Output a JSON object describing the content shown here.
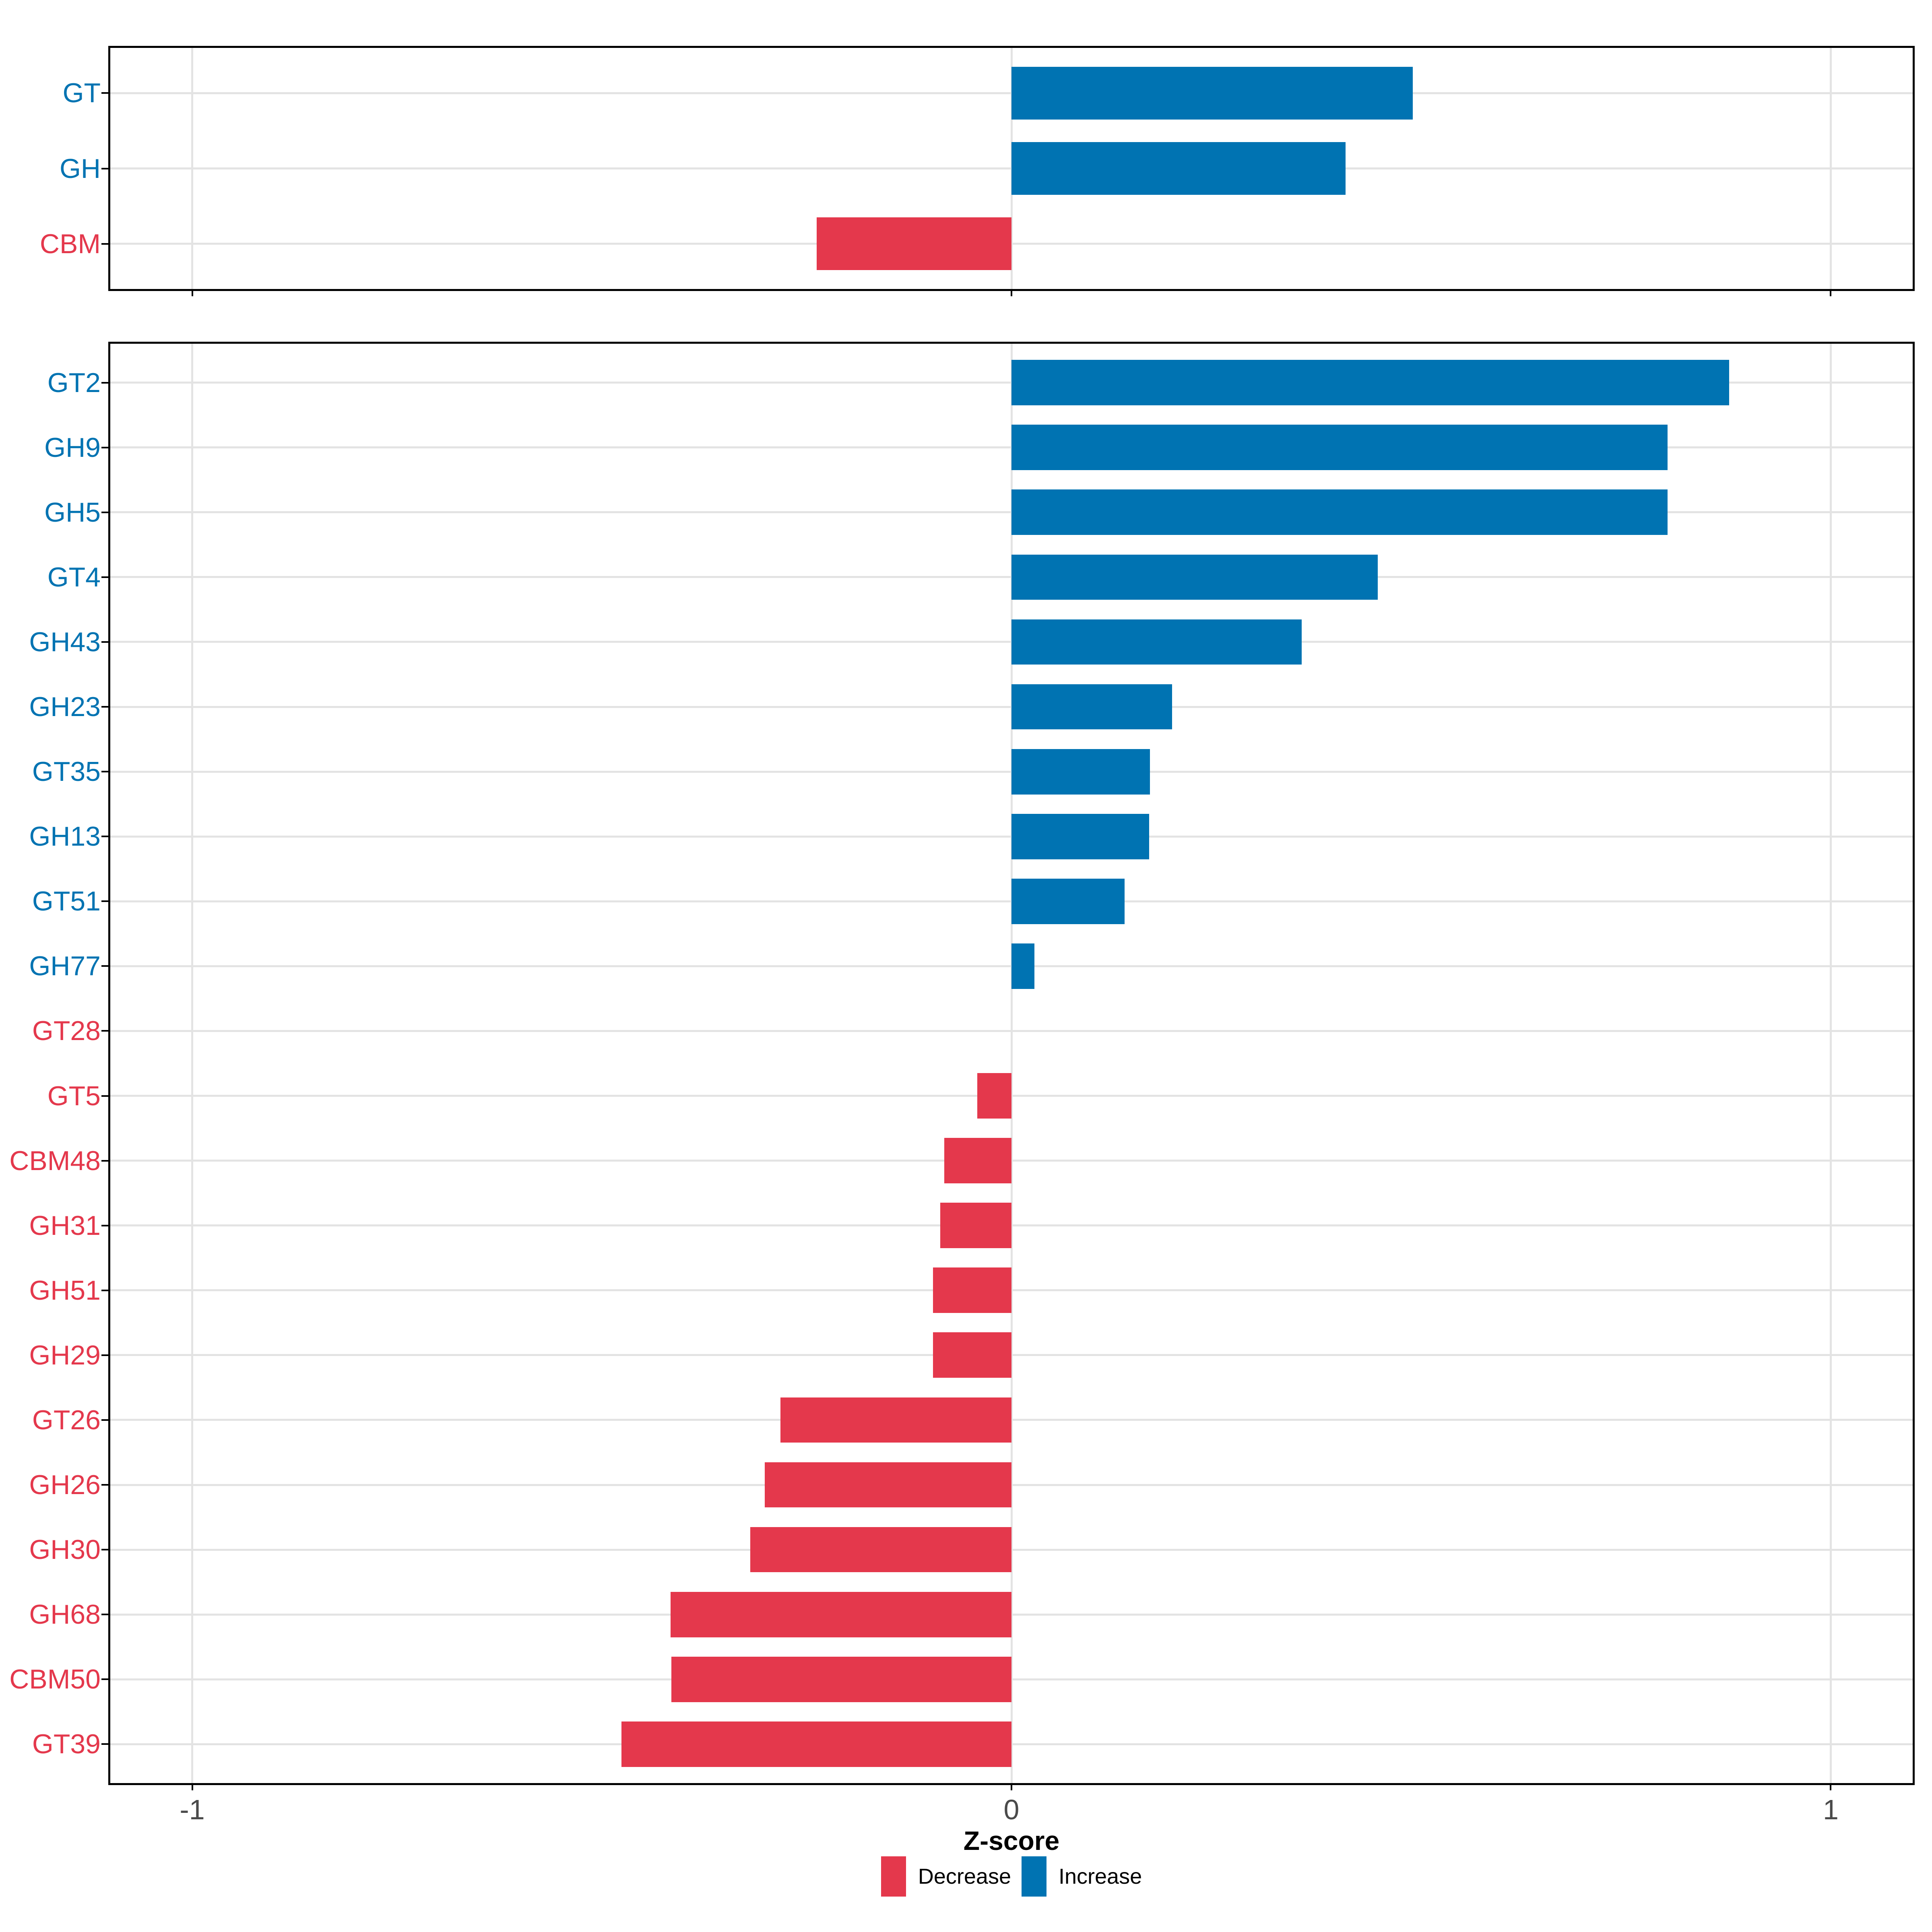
{
  "figure_type": "two-panel horizontal bar chart",
  "axis": {
    "x_title": "Z-score",
    "x_tick_labels": [
      "-1",
      "0",
      "1"
    ]
  },
  "colors": {
    "increase": "#0073B2",
    "decrease": "#E4384C",
    "gridline": "#e3e3e3",
    "panel_border": "#000000",
    "axis_tick": "#000000",
    "axis_text": "#4a4a4a"
  },
  "legend": {
    "items": [
      {
        "label": "Decrease",
        "direction": "decrease",
        "color": "#E4384C"
      },
      {
        "label": "Increase",
        "direction": "increase",
        "color": "#0073B2"
      }
    ],
    "position": "bottom"
  },
  "chart_data": [
    {
      "id": "overview",
      "type": "bar",
      "orientation": "horizontal",
      "title": "",
      "xlabel": "Z-score",
      "ylabel": "",
      "xlim": [
        -1.1,
        1.1
      ],
      "xticks": [
        -1,
        0,
        1
      ],
      "show_xtick_labels": false,
      "grid": "major",
      "categories": [
        "GT",
        "GH",
        "CBM"
      ],
      "values": [
        0.49,
        0.408,
        -0.238
      ],
      "directions": [
        "increase",
        "increase",
        "decrease"
      ]
    },
    {
      "id": "families",
      "type": "bar",
      "orientation": "horizontal",
      "title": "",
      "xlabel": "Z-score",
      "ylabel": "",
      "xlim": [
        -1.1,
        1.1
      ],
      "xticks": [
        -1,
        0,
        1
      ],
      "show_xtick_labels": true,
      "grid": "major",
      "categories": [
        "GT2",
        "GH9",
        "GH5",
        "GT4",
        "GH43",
        "GH23",
        "GT35",
        "GH13",
        "GT51",
        "GH77",
        "GT28",
        "GT5",
        "CBM48",
        "GH31",
        "GH51",
        "GH29",
        "GT26",
        "GH26",
        "GH30",
        "GH68",
        "CBM50",
        "GT39"
      ],
      "values": [
        0.876,
        0.801,
        0.801,
        0.447,
        0.354,
        0.196,
        0.169,
        0.168,
        0.138,
        0.028,
        0.0,
        -0.042,
        -0.082,
        -0.087,
        -0.096,
        -0.096,
        -0.282,
        -0.301,
        -0.319,
        -0.416,
        -0.415,
        -0.476
      ],
      "directions": [
        "increase",
        "increase",
        "increase",
        "increase",
        "increase",
        "increase",
        "increase",
        "increase",
        "increase",
        "increase",
        "decrease",
        "decrease",
        "decrease",
        "decrease",
        "decrease",
        "decrease",
        "decrease",
        "decrease",
        "decrease",
        "decrease",
        "decrease",
        "decrease"
      ]
    }
  ]
}
